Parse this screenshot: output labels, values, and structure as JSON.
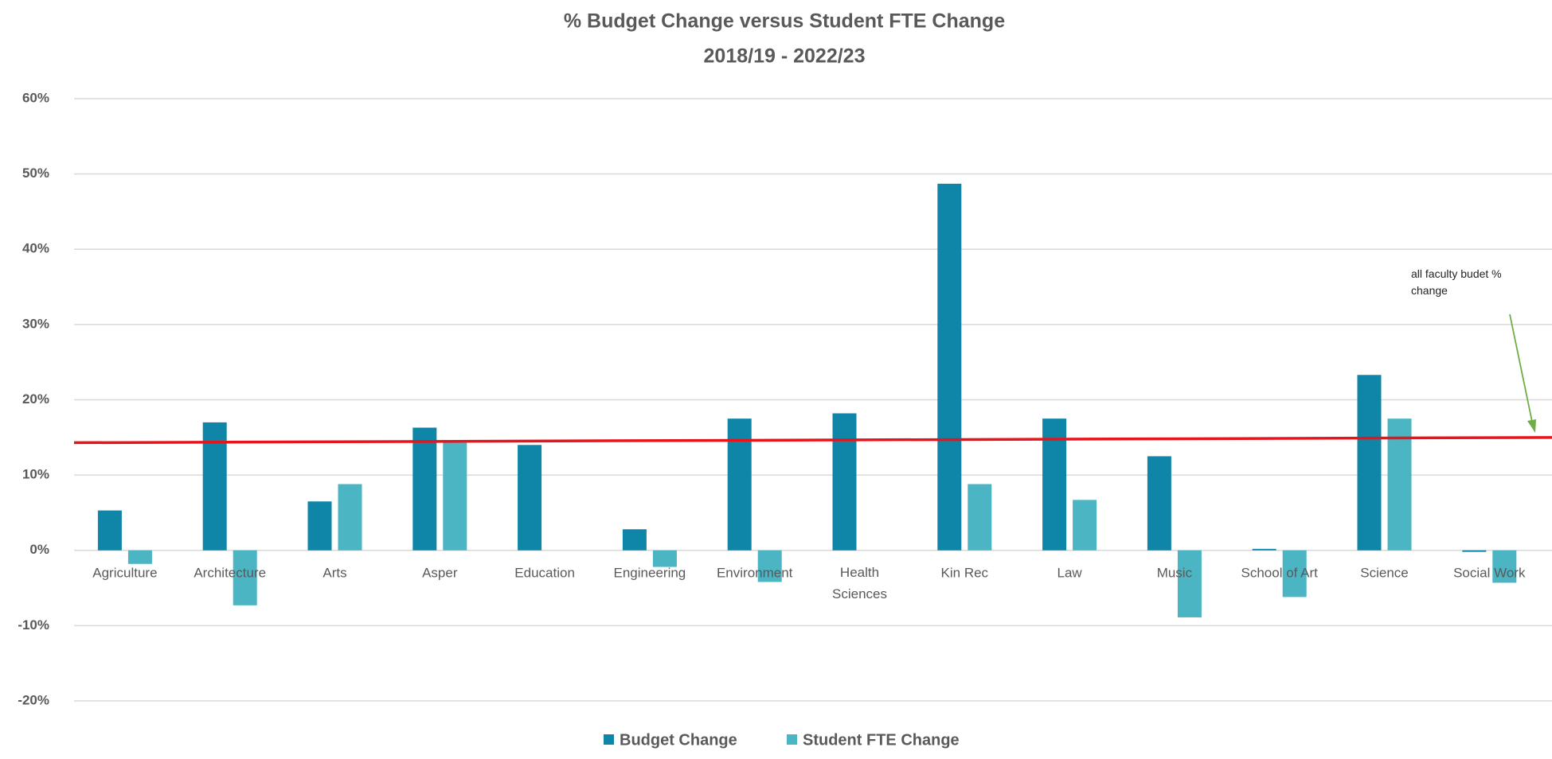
{
  "chart_data": {
    "type": "bar",
    "title": "% Budget Change versus Student FTE Change",
    "subtitle": "2018/19 - 2022/23",
    "categories": [
      "Agriculture",
      "Architecture",
      "Arts",
      "Asper",
      "Education",
      "Engineering",
      "Environment",
      "Health Sciences",
      "Kin Rec",
      "Law",
      "Music",
      "School of Art",
      "Science",
      "Social Work"
    ],
    "series": [
      {
        "name": "Budget Change",
        "color": "#0f86a8",
        "values": [
          5.3,
          17,
          6.5,
          16.3,
          14,
          2.8,
          17.5,
          18.2,
          48.7,
          17.5,
          12.5,
          0.2,
          23.3,
          -0.2
        ]
      },
      {
        "name": "Student FTE Change",
        "color": "#4bb5c3",
        "values": [
          -1.8,
          -7.3,
          8.8,
          14.3,
          null,
          -2.2,
          -4.2,
          null,
          8.8,
          6.7,
          -8.9,
          -6.2,
          17.5,
          -4.3
        ]
      }
    ],
    "ylim": [
      -20,
      60
    ],
    "yticks": [
      {
        "value": -20,
        "label": "-20%"
      },
      {
        "value": -10,
        "label": "-10%"
      },
      {
        "value": 0,
        "label": "0%"
      },
      {
        "value": 10,
        "label": "10%"
      },
      {
        "value": 20,
        "label": "20%"
      },
      {
        "value": 30,
        "label": "30%"
      },
      {
        "value": 40,
        "label": "40%"
      },
      {
        "value": 50,
        "label": "50%"
      },
      {
        "value": 60,
        "label": "60%"
      }
    ],
    "grid": true,
    "reference_line": {
      "values": [
        14.3,
        15.0
      ],
      "color": "#e8141c"
    },
    "annotation": "all faculty budet % change",
    "annotation_arrow_color": "#70ad47",
    "legend": "bottom"
  }
}
